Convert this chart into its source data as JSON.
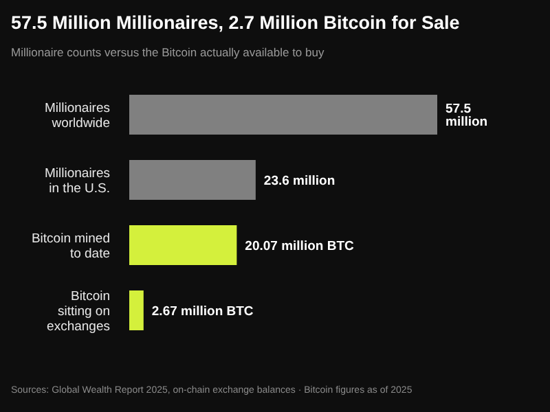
{
  "chart_data": {
    "type": "bar",
    "orientation": "horizontal",
    "title": "57.5 Million Millionaires, 2.7 Million Bitcoin for Sale",
    "subtitle": "Millionaire counts versus the Bitcoin actually available to buy",
    "categories": [
      "Millionaires worldwide",
      "Millionaires in the U.S.",
      "Bitcoin mined to date",
      "Bitcoin sitting on exchanges"
    ],
    "values": [
      57.5,
      23.6,
      20.07,
      2.67
    ],
    "colors": [
      "#808080",
      "#808080",
      "#d4f03c",
      "#d4f03c"
    ],
    "value_labels": [
      "57.5 million",
      "23.6 million",
      "20.07 million BTC",
      "2.67 million BTC"
    ],
    "annotations": [
      "Sources: Global Wealth Report 2025, on-chain exchange balances · Bitcoin figures as of 2025"
    ],
    "grid": false,
    "legend": false
  }
}
